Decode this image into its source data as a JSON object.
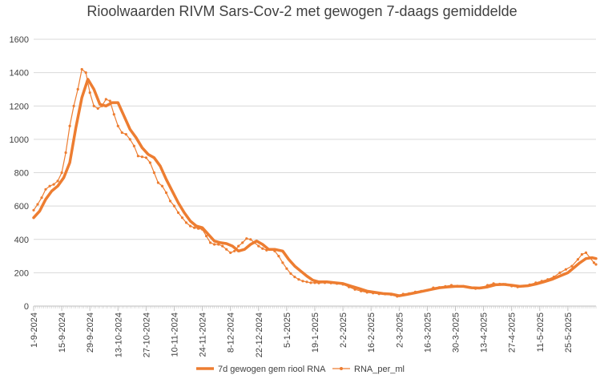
{
  "chart_data": {
    "type": "line",
    "title": "Rioolwaarden RIVM Sars-Cov-2 met gewogen 7-daags gemiddelde",
    "xlabel": "",
    "ylabel": "",
    "ylim": [
      0,
      1600
    ],
    "yticks": [
      0,
      200,
      400,
      600,
      800,
      1000,
      1200,
      1400,
      1600
    ],
    "xlim": [
      "2024-09-01",
      "2025-06-08"
    ],
    "xticks": [
      "1-9-2024",
      "15-9-2024",
      "29-9-2024",
      "13-10-2024",
      "27-10-2024",
      "10-11-2024",
      "24-11-2024",
      "8-12-2024",
      "22-12-2024",
      "5-1-2025",
      "19-1-2025",
      "2-2-2025",
      "16-2-2025",
      "2-3-2025",
      "16-3-2025",
      "30-3-2025",
      "13-4-2025",
      "27-4-2025",
      "11-5-2025",
      "25-5-2025"
    ],
    "grid": true,
    "legend": "bottom",
    "series": [
      {
        "name": "7d gewogen gem riool RNA",
        "color": "#ED7D31",
        "marker": "none",
        "points": [
          [
            "2024-09-01",
            530
          ],
          [
            "2024-09-04",
            570
          ],
          [
            "2024-09-07",
            640
          ],
          [
            "2024-09-10",
            690
          ],
          [
            "2024-09-13",
            720
          ],
          [
            "2024-09-16",
            770
          ],
          [
            "2024-09-19",
            860
          ],
          [
            "2024-09-22",
            1070
          ],
          [
            "2024-09-25",
            1250
          ],
          [
            "2024-09-28",
            1360
          ],
          [
            "2024-10-01",
            1300
          ],
          [
            "2024-10-04",
            1210
          ],
          [
            "2024-10-07",
            1200
          ],
          [
            "2024-10-10",
            1220
          ],
          [
            "2024-10-13",
            1220
          ],
          [
            "2024-10-16",
            1140
          ],
          [
            "2024-10-19",
            1060
          ],
          [
            "2024-10-22",
            1010
          ],
          [
            "2024-10-25",
            950
          ],
          [
            "2024-10-28",
            910
          ],
          [
            "2024-10-31",
            890
          ],
          [
            "2024-11-03",
            840
          ],
          [
            "2024-11-06",
            760
          ],
          [
            "2024-11-09",
            690
          ],
          [
            "2024-11-12",
            620
          ],
          [
            "2024-11-15",
            560
          ],
          [
            "2024-11-18",
            510
          ],
          [
            "2024-11-21",
            480
          ],
          [
            "2024-11-24",
            470
          ],
          [
            "2024-11-27",
            430
          ],
          [
            "2024-11-30",
            390
          ],
          [
            "2024-12-03",
            380
          ],
          [
            "2024-12-06",
            375
          ],
          [
            "2024-12-09",
            360
          ],
          [
            "2024-12-12",
            330
          ],
          [
            "2024-12-15",
            340
          ],
          [
            "2024-12-18",
            370
          ],
          [
            "2024-12-21",
            390
          ],
          [
            "2024-12-24",
            370
          ],
          [
            "2024-12-27",
            340
          ],
          [
            "2024-12-30",
            340
          ],
          [
            "2025-01-03",
            330
          ],
          [
            "2025-01-06",
            280
          ],
          [
            "2025-01-09",
            240
          ],
          [
            "2025-01-12",
            210
          ],
          [
            "2025-01-15",
            180
          ],
          [
            "2025-01-18",
            155
          ],
          [
            "2025-01-21",
            145
          ],
          [
            "2025-01-25",
            145
          ],
          [
            "2025-01-29",
            140
          ],
          [
            "2025-02-02",
            135
          ],
          [
            "2025-02-06",
            120
          ],
          [
            "2025-02-10",
            105
          ],
          [
            "2025-02-14",
            90
          ],
          [
            "2025-02-18",
            82
          ],
          [
            "2025-02-22",
            75
          ],
          [
            "2025-02-26",
            72
          ],
          [
            "2025-03-02",
            62
          ],
          [
            "2025-03-06",
            70
          ],
          [
            "2025-03-10",
            80
          ],
          [
            "2025-03-14",
            90
          ],
          [
            "2025-03-18",
            100
          ],
          [
            "2025-03-22",
            110
          ],
          [
            "2025-03-26",
            115
          ],
          [
            "2025-03-30",
            118
          ],
          [
            "2025-04-03",
            118
          ],
          [
            "2025-04-07",
            110
          ],
          [
            "2025-04-11",
            108
          ],
          [
            "2025-04-15",
            115
          ],
          [
            "2025-04-19",
            128
          ],
          [
            "2025-04-23",
            130
          ],
          [
            "2025-04-27",
            125
          ],
          [
            "2025-05-01",
            118
          ],
          [
            "2025-05-05",
            122
          ],
          [
            "2025-05-09",
            132
          ],
          [
            "2025-05-13",
            145
          ],
          [
            "2025-05-17",
            160
          ],
          [
            "2025-05-21",
            180
          ],
          [
            "2025-05-25",
            200
          ],
          [
            "2025-05-28",
            230
          ],
          [
            "2025-05-31",
            260
          ],
          [
            "2025-06-03",
            285
          ],
          [
            "2025-06-06",
            290
          ],
          [
            "2025-06-08",
            285
          ]
        ]
      },
      {
        "name": "RNA_per_ml",
        "color": "#ED7D31",
        "marker": "dot",
        "points": [
          [
            "2024-09-01",
            575
          ],
          [
            "2024-09-03",
            610
          ],
          [
            "2024-09-05",
            650
          ],
          [
            "2024-09-07",
            700
          ],
          [
            "2024-09-09",
            720
          ],
          [
            "2024-09-11",
            730
          ],
          [
            "2024-09-13",
            750
          ],
          [
            "2024-09-15",
            800
          ],
          [
            "2024-09-17",
            920
          ],
          [
            "2024-09-19",
            1080
          ],
          [
            "2024-09-21",
            1200
          ],
          [
            "2024-09-23",
            1300
          ],
          [
            "2024-09-25",
            1420
          ],
          [
            "2024-09-27",
            1400
          ],
          [
            "2024-09-29",
            1280
          ],
          [
            "2024-10-01",
            1200
          ],
          [
            "2024-10-03",
            1185
          ],
          [
            "2024-10-05",
            1200
          ],
          [
            "2024-10-07",
            1240
          ],
          [
            "2024-10-09",
            1230
          ],
          [
            "2024-10-11",
            1150
          ],
          [
            "2024-10-13",
            1080
          ],
          [
            "2024-10-15",
            1040
          ],
          [
            "2024-10-17",
            1030
          ],
          [
            "2024-10-19",
            1000
          ],
          [
            "2024-10-21",
            960
          ],
          [
            "2024-10-23",
            900
          ],
          [
            "2024-10-25",
            895
          ],
          [
            "2024-10-27",
            890
          ],
          [
            "2024-10-29",
            860
          ],
          [
            "2024-10-31",
            800
          ],
          [
            "2024-11-02",
            740
          ],
          [
            "2024-11-04",
            720
          ],
          [
            "2024-11-06",
            680
          ],
          [
            "2024-11-08",
            630
          ],
          [
            "2024-11-10",
            600
          ],
          [
            "2024-11-12",
            560
          ],
          [
            "2024-11-14",
            530
          ],
          [
            "2024-11-16",
            500
          ],
          [
            "2024-11-18",
            480
          ],
          [
            "2024-11-20",
            470
          ],
          [
            "2024-11-22",
            465
          ],
          [
            "2024-11-24",
            460
          ],
          [
            "2024-11-26",
            420
          ],
          [
            "2024-11-28",
            380
          ],
          [
            "2024-11-30",
            370
          ],
          [
            "2024-12-02",
            370
          ],
          [
            "2024-12-04",
            360
          ],
          [
            "2024-12-06",
            340
          ],
          [
            "2024-12-08",
            320
          ],
          [
            "2024-12-10",
            330
          ],
          [
            "2024-12-12",
            360
          ],
          [
            "2024-12-14",
            380
          ],
          [
            "2024-12-16",
            405
          ],
          [
            "2024-12-18",
            400
          ],
          [
            "2024-12-20",
            380
          ],
          [
            "2024-12-22",
            360
          ],
          [
            "2024-12-24",
            345
          ],
          [
            "2024-12-26",
            335
          ],
          [
            "2024-12-28",
            340
          ],
          [
            "2024-12-30",
            330
          ],
          [
            "2025-01-01",
            300
          ],
          [
            "2025-01-03",
            260
          ],
          [
            "2025-01-05",
            225
          ],
          [
            "2025-01-07",
            195
          ],
          [
            "2025-01-09",
            175
          ],
          [
            "2025-01-11",
            160
          ],
          [
            "2025-01-13",
            150
          ],
          [
            "2025-01-15",
            145
          ],
          [
            "2025-01-17",
            140
          ],
          [
            "2025-01-19",
            140
          ],
          [
            "2025-01-21",
            138
          ],
          [
            "2025-01-24",
            140
          ],
          [
            "2025-01-27",
            138
          ],
          [
            "2025-01-30",
            135
          ],
          [
            "2025-02-02",
            130
          ],
          [
            "2025-02-05",
            115
          ],
          [
            "2025-02-08",
            100
          ],
          [
            "2025-02-11",
            90
          ],
          [
            "2025-02-14",
            82
          ],
          [
            "2025-02-17",
            78
          ],
          [
            "2025-02-20",
            73
          ],
          [
            "2025-02-23",
            72
          ],
          [
            "2025-02-26",
            68
          ],
          [
            "2025-03-01",
            58
          ],
          [
            "2025-03-04",
            72
          ],
          [
            "2025-03-07",
            75
          ],
          [
            "2025-03-10",
            85
          ],
          [
            "2025-03-13",
            90
          ],
          [
            "2025-03-16",
            95
          ],
          [
            "2025-03-19",
            110
          ],
          [
            "2025-03-22",
            112
          ],
          [
            "2025-03-25",
            118
          ],
          [
            "2025-03-28",
            125
          ],
          [
            "2025-03-31",
            120
          ],
          [
            "2025-04-03",
            118
          ],
          [
            "2025-04-06",
            112
          ],
          [
            "2025-04-09",
            105
          ],
          [
            "2025-04-12",
            110
          ],
          [
            "2025-04-15",
            125
          ],
          [
            "2025-04-18",
            135
          ],
          [
            "2025-04-21",
            132
          ],
          [
            "2025-04-24",
            130
          ],
          [
            "2025-04-27",
            120
          ],
          [
            "2025-04-30",
            115
          ],
          [
            "2025-05-03",
            120
          ],
          [
            "2025-05-06",
            128
          ],
          [
            "2025-05-09",
            140
          ],
          [
            "2025-05-12",
            150
          ],
          [
            "2025-05-15",
            160
          ],
          [
            "2025-05-18",
            175
          ],
          [
            "2025-05-21",
            200
          ],
          [
            "2025-05-24",
            220
          ],
          [
            "2025-05-27",
            240
          ],
          [
            "2025-05-30",
            280
          ],
          [
            "2025-06-01",
            310
          ],
          [
            "2025-06-03",
            320
          ],
          [
            "2025-06-05",
            290
          ],
          [
            "2025-06-07",
            260
          ],
          [
            "2025-06-08",
            250
          ]
        ]
      }
    ]
  }
}
